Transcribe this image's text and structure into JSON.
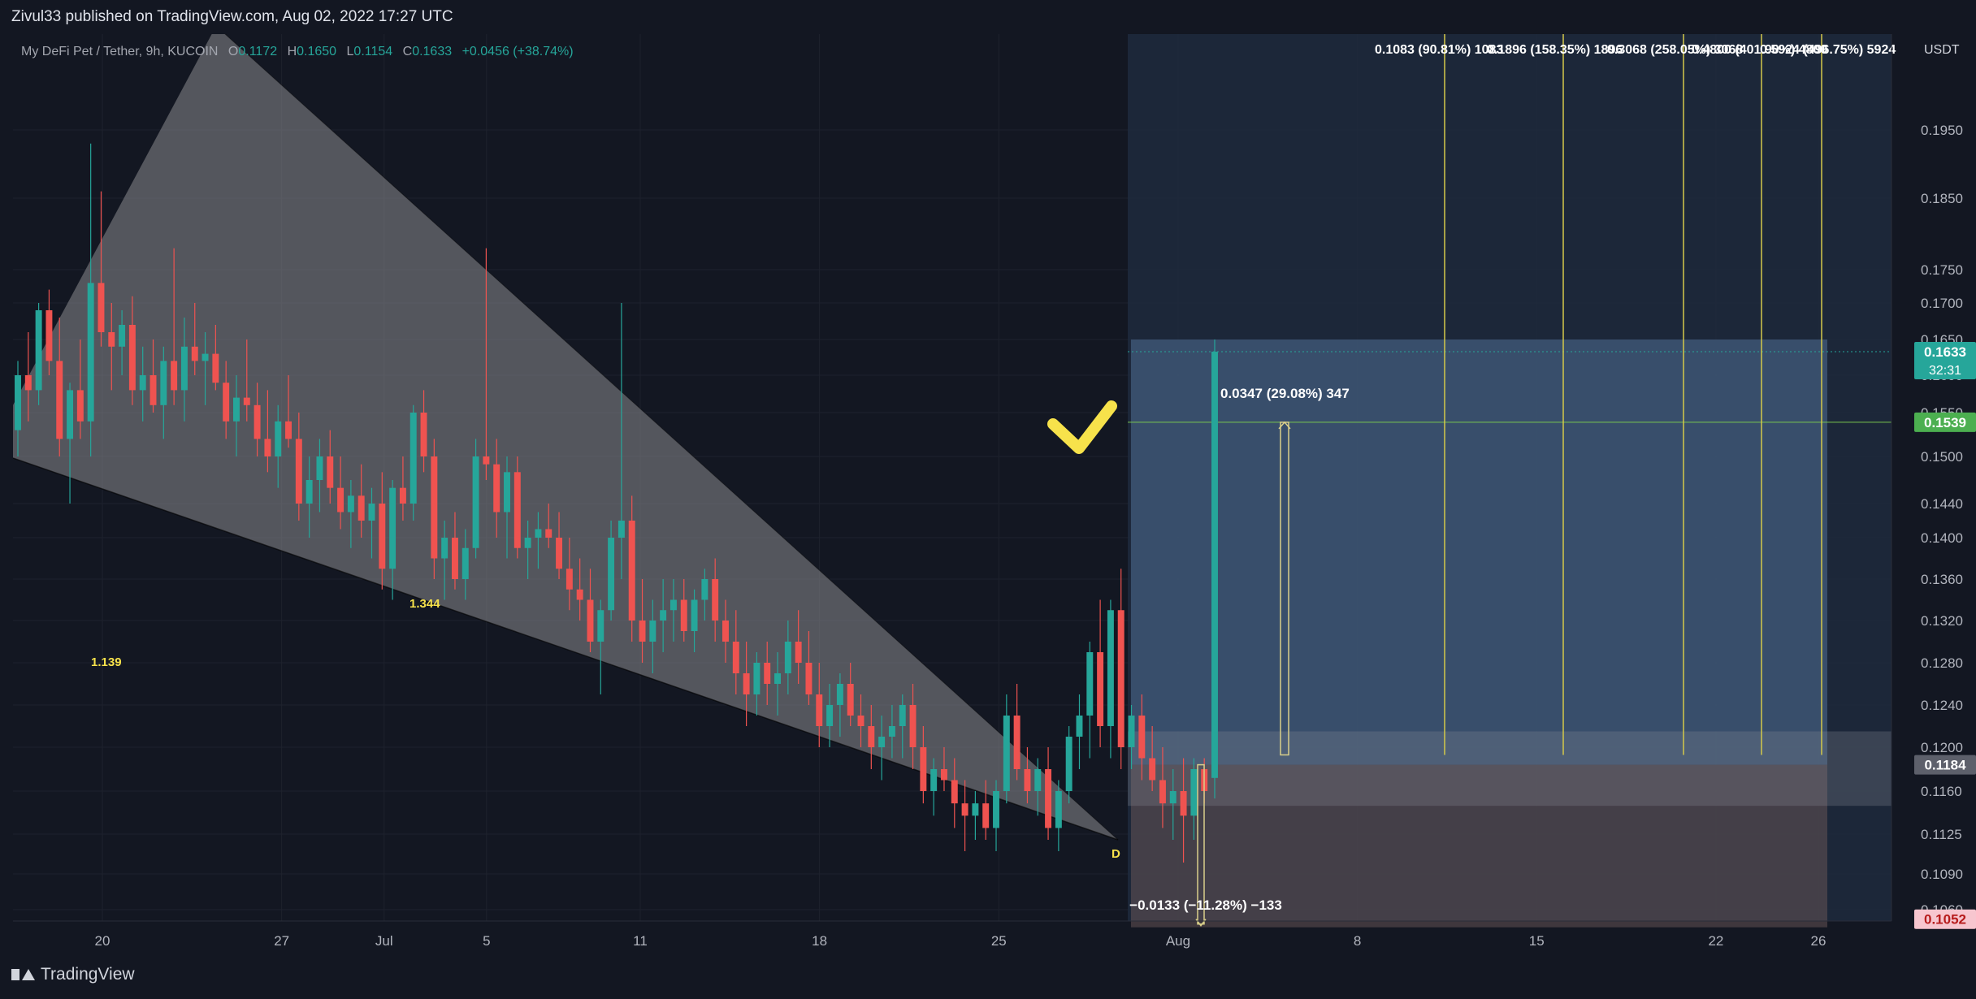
{
  "header": {
    "published": "Zivul33 published on TradingView.com, Aug 02, 2022 17:27 UTC"
  },
  "legend": {
    "symbol": "My DeFi Pet / Tether, 9h, KUCOIN",
    "o_label": "O",
    "o_value": "0.1172",
    "h_label": "H",
    "h_value": "0.1650",
    "l_label": "L",
    "l_value": "0.1154",
    "c_label": "C",
    "c_value": "0.1633",
    "change": "+0.0456 (+38.74%)"
  },
  "footer": {
    "brand": "TradingView"
  },
  "colors": {
    "background": "#131722",
    "up": "#26a69a",
    "down": "#ef5350",
    "wedge": "#8a8a8e",
    "target_zone": "#5b7fa8",
    "stop_zone": "#6b5757",
    "annotation": "#f7e24b",
    "fib_line": "#d4c94a"
  },
  "chart_data": {
    "type": "candlestick",
    "currency": "USDT",
    "timeframe": "9h",
    "ylim": [
      0.104,
      0.203
    ],
    "y_ticks": [
      "0.1950",
      "0.1850",
      "0.1750",
      "0.1700",
      "0.1650",
      "0.1600",
      "0.1550",
      "0.1500",
      "0.1440",
      "0.1400",
      "0.1360",
      "0.1320",
      "0.1280",
      "0.1240",
      "0.1200",
      "0.1160",
      "0.1125",
      "0.1090",
      "0.1060"
    ],
    "x_ticks": [
      {
        "label": "20",
        "day": 20
      },
      {
        "label": "27",
        "day": 27
      },
      {
        "label": "Jul",
        "day": 31
      },
      {
        "label": "5",
        "day": 35
      },
      {
        "label": "11",
        "day": 41
      },
      {
        "label": "18",
        "day": 48
      },
      {
        "label": "25",
        "day": 55
      },
      {
        "label": "Aug",
        "day": 62
      },
      {
        "label": "8",
        "day": 69
      },
      {
        "label": "15",
        "day": 76
      },
      {
        "label": "22",
        "day": 83
      },
      {
        "label": "26",
        "day": 87
      }
    ],
    "price_labels": [
      {
        "text": "0.1633",
        "price": 0.1633,
        "sub": "32:31",
        "kind": "last"
      },
      {
        "text": "0.1539",
        "price": 0.1539,
        "kind": "target"
      },
      {
        "text": "0.1184",
        "price": 0.1184,
        "kind": "entry"
      },
      {
        "text": "0.1052",
        "price": 0.1052,
        "kind": "stop"
      }
    ],
    "annotations": [
      {
        "text": "1.344",
        "kind": "wedge-ratio"
      },
      {
        "text": "1.139",
        "kind": "wedge-ratio"
      },
      {
        "text": "D",
        "kind": "pattern-point"
      },
      {
        "text": "0.0347 (29.08%) 347",
        "kind": "measure"
      },
      {
        "text": "−0.0133 (−11.28%) −133",
        "kind": "measure"
      },
      {
        "text": "0.1083 (90.81%) 1083",
        "kind": "fib"
      },
      {
        "text": "0.1896 (158.35%) 1896",
        "kind": "fib"
      },
      {
        "text": "0.3068 (258.05%) 3068",
        "kind": "fib"
      },
      {
        "text": "0.4800 (401.90%) 4800",
        "kind": "fib"
      },
      {
        "text": "0.5924 (496.75%) 5924",
        "kind": "fib"
      }
    ],
    "candles": [
      {
        "o": 0.153,
        "h": 0.162,
        "l": 0.15,
        "c": 0.16
      },
      {
        "o": 0.16,
        "h": 0.166,
        "l": 0.154,
        "c": 0.158
      },
      {
        "o": 0.158,
        "h": 0.17,
        "l": 0.156,
        "c": 0.169
      },
      {
        "o": 0.169,
        "h": 0.172,
        "l": 0.16,
        "c": 0.162
      },
      {
        "o": 0.162,
        "h": 0.168,
        "l": 0.15,
        "c": 0.152
      },
      {
        "o": 0.152,
        "h": 0.159,
        "l": 0.144,
        "c": 0.158
      },
      {
        "o": 0.158,
        "h": 0.165,
        "l": 0.152,
        "c": 0.154
      },
      {
        "o": 0.154,
        "h": 0.193,
        "l": 0.15,
        "c": 0.173
      },
      {
        "o": 0.173,
        "h": 0.186,
        "l": 0.164,
        "c": 0.166
      },
      {
        "o": 0.166,
        "h": 0.17,
        "l": 0.158,
        "c": 0.164
      },
      {
        "o": 0.164,
        "h": 0.169,
        "l": 0.16,
        "c": 0.167
      },
      {
        "o": 0.167,
        "h": 0.171,
        "l": 0.156,
        "c": 0.158
      },
      {
        "o": 0.158,
        "h": 0.164,
        "l": 0.154,
        "c": 0.16
      },
      {
        "o": 0.16,
        "h": 0.165,
        "l": 0.155,
        "c": 0.156
      },
      {
        "o": 0.156,
        "h": 0.164,
        "l": 0.152,
        "c": 0.162
      },
      {
        "o": 0.162,
        "h": 0.178,
        "l": 0.156,
        "c": 0.158
      },
      {
        "o": 0.158,
        "h": 0.168,
        "l": 0.154,
        "c": 0.164
      },
      {
        "o": 0.164,
        "h": 0.17,
        "l": 0.16,
        "c": 0.162
      },
      {
        "o": 0.162,
        "h": 0.166,
        "l": 0.156,
        "c": 0.163
      },
      {
        "o": 0.163,
        "h": 0.167,
        "l": 0.158,
        "c": 0.159
      },
      {
        "o": 0.159,
        "h": 0.162,
        "l": 0.152,
        "c": 0.154
      },
      {
        "o": 0.154,
        "h": 0.16,
        "l": 0.15,
        "c": 0.157
      },
      {
        "o": 0.157,
        "h": 0.165,
        "l": 0.154,
        "c": 0.156
      },
      {
        "o": 0.156,
        "h": 0.159,
        "l": 0.15,
        "c": 0.152
      },
      {
        "o": 0.152,
        "h": 0.158,
        "l": 0.148,
        "c": 0.15
      },
      {
        "o": 0.15,
        "h": 0.156,
        "l": 0.146,
        "c": 0.154
      },
      {
        "o": 0.154,
        "h": 0.16,
        "l": 0.151,
        "c": 0.152
      },
      {
        "o": 0.152,
        "h": 0.155,
        "l": 0.142,
        "c": 0.144
      },
      {
        "o": 0.144,
        "h": 0.15,
        "l": 0.14,
        "c": 0.147
      },
      {
        "o": 0.147,
        "h": 0.152,
        "l": 0.143,
        "c": 0.15
      },
      {
        "o": 0.15,
        "h": 0.153,
        "l": 0.144,
        "c": 0.146
      },
      {
        "o": 0.146,
        "h": 0.15,
        "l": 0.141,
        "c": 0.143
      },
      {
        "o": 0.143,
        "h": 0.147,
        "l": 0.139,
        "c": 0.145
      },
      {
        "o": 0.145,
        "h": 0.149,
        "l": 0.14,
        "c": 0.142
      },
      {
        "o": 0.142,
        "h": 0.146,
        "l": 0.138,
        "c": 0.144
      },
      {
        "o": 0.144,
        "h": 0.148,
        "l": 0.135,
        "c": 0.137
      },
      {
        "o": 0.137,
        "h": 0.147,
        "l": 0.134,
        "c": 0.146
      },
      {
        "o": 0.146,
        "h": 0.15,
        "l": 0.142,
        "c": 0.144
      },
      {
        "o": 0.144,
        "h": 0.156,
        "l": 0.142,
        "c": 0.155
      },
      {
        "o": 0.155,
        "h": 0.158,
        "l": 0.148,
        "c": 0.15
      },
      {
        "o": 0.15,
        "h": 0.152,
        "l": 0.136,
        "c": 0.138
      },
      {
        "o": 0.138,
        "h": 0.142,
        "l": 0.134,
        "c": 0.14
      },
      {
        "o": 0.14,
        "h": 0.143,
        "l": 0.135,
        "c": 0.136
      },
      {
        "o": 0.136,
        "h": 0.141,
        "l": 0.134,
        "c": 0.139
      },
      {
        "o": 0.139,
        "h": 0.152,
        "l": 0.138,
        "c": 0.15
      },
      {
        "o": 0.15,
        "h": 0.178,
        "l": 0.147,
        "c": 0.149
      },
      {
        "o": 0.149,
        "h": 0.152,
        "l": 0.14,
        "c": 0.143
      },
      {
        "o": 0.143,
        "h": 0.15,
        "l": 0.138,
        "c": 0.148
      },
      {
        "o": 0.148,
        "h": 0.15,
        "l": 0.138,
        "c": 0.139
      },
      {
        "o": 0.139,
        "h": 0.142,
        "l": 0.136,
        "c": 0.14
      },
      {
        "o": 0.14,
        "h": 0.143,
        "l": 0.137,
        "c": 0.141
      },
      {
        "o": 0.141,
        "h": 0.144,
        "l": 0.139,
        "c": 0.14
      },
      {
        "o": 0.14,
        "h": 0.143,
        "l": 0.136,
        "c": 0.137
      },
      {
        "o": 0.137,
        "h": 0.14,
        "l": 0.133,
        "c": 0.135
      },
      {
        "o": 0.135,
        "h": 0.138,
        "l": 0.132,
        "c": 0.134
      },
      {
        "o": 0.134,
        "h": 0.137,
        "l": 0.129,
        "c": 0.13
      },
      {
        "o": 0.13,
        "h": 0.134,
        "l": 0.125,
        "c": 0.133
      },
      {
        "o": 0.133,
        "h": 0.142,
        "l": 0.132,
        "c": 0.14
      },
      {
        "o": 0.14,
        "h": 0.17,
        "l": 0.136,
        "c": 0.142
      },
      {
        "o": 0.142,
        "h": 0.145,
        "l": 0.13,
        "c": 0.132
      },
      {
        "o": 0.132,
        "h": 0.136,
        "l": 0.128,
        "c": 0.13
      },
      {
        "o": 0.13,
        "h": 0.134,
        "l": 0.127,
        "c": 0.132
      },
      {
        "o": 0.132,
        "h": 0.136,
        "l": 0.129,
        "c": 0.133
      },
      {
        "o": 0.133,
        "h": 0.136,
        "l": 0.13,
        "c": 0.134
      },
      {
        "o": 0.134,
        "h": 0.136,
        "l": 0.13,
        "c": 0.131
      },
      {
        "o": 0.131,
        "h": 0.135,
        "l": 0.129,
        "c": 0.134
      },
      {
        "o": 0.134,
        "h": 0.137,
        "l": 0.132,
        "c": 0.136
      },
      {
        "o": 0.136,
        "h": 0.138,
        "l": 0.13,
        "c": 0.132
      },
      {
        "o": 0.132,
        "h": 0.134,
        "l": 0.128,
        "c": 0.13
      },
      {
        "o": 0.13,
        "h": 0.133,
        "l": 0.125,
        "c": 0.127
      },
      {
        "o": 0.127,
        "h": 0.13,
        "l": 0.122,
        "c": 0.125
      },
      {
        "o": 0.125,
        "h": 0.129,
        "l": 0.123,
        "c": 0.128
      },
      {
        "o": 0.128,
        "h": 0.13,
        "l": 0.124,
        "c": 0.126
      },
      {
        "o": 0.126,
        "h": 0.129,
        "l": 0.123,
        "c": 0.127
      },
      {
        "o": 0.127,
        "h": 0.132,
        "l": 0.125,
        "c": 0.13
      },
      {
        "o": 0.13,
        "h": 0.133,
        "l": 0.126,
        "c": 0.128
      },
      {
        "o": 0.128,
        "h": 0.131,
        "l": 0.124,
        "c": 0.125
      },
      {
        "o": 0.125,
        "h": 0.128,
        "l": 0.12,
        "c": 0.122
      },
      {
        "o": 0.122,
        "h": 0.126,
        "l": 0.12,
        "c": 0.124
      },
      {
        "o": 0.124,
        "h": 0.127,
        "l": 0.121,
        "c": 0.126
      },
      {
        "o": 0.126,
        "h": 0.128,
        "l": 0.122,
        "c": 0.123
      },
      {
        "o": 0.123,
        "h": 0.125,
        "l": 0.12,
        "c": 0.122
      },
      {
        "o": 0.122,
        "h": 0.124,
        "l": 0.118,
        "c": 0.12
      },
      {
        "o": 0.12,
        "h": 0.123,
        "l": 0.117,
        "c": 0.121
      },
      {
        "o": 0.121,
        "h": 0.124,
        "l": 0.119,
        "c": 0.122
      },
      {
        "o": 0.122,
        "h": 0.125,
        "l": 0.119,
        "c": 0.124
      },
      {
        "o": 0.124,
        "h": 0.126,
        "l": 0.118,
        "c": 0.12
      },
      {
        "o": 0.12,
        "h": 0.122,
        "l": 0.115,
        "c": 0.116
      },
      {
        "o": 0.116,
        "h": 0.119,
        "l": 0.114,
        "c": 0.118
      },
      {
        "o": 0.118,
        "h": 0.12,
        "l": 0.116,
        "c": 0.117
      },
      {
        "o": 0.117,
        "h": 0.119,
        "l": 0.113,
        "c": 0.115
      },
      {
        "o": 0.115,
        "h": 0.117,
        "l": 0.111,
        "c": 0.114
      },
      {
        "o": 0.114,
        "h": 0.116,
        "l": 0.112,
        "c": 0.115
      },
      {
        "o": 0.115,
        "h": 0.117,
        "l": 0.112,
        "c": 0.113
      },
      {
        "o": 0.113,
        "h": 0.117,
        "l": 0.111,
        "c": 0.116
      },
      {
        "o": 0.116,
        "h": 0.125,
        "l": 0.115,
        "c": 0.123
      },
      {
        "o": 0.123,
        "h": 0.126,
        "l": 0.117,
        "c": 0.118
      },
      {
        "o": 0.118,
        "h": 0.12,
        "l": 0.115,
        "c": 0.116
      },
      {
        "o": 0.116,
        "h": 0.119,
        "l": 0.114,
        "c": 0.118
      },
      {
        "o": 0.118,
        "h": 0.12,
        "l": 0.112,
        "c": 0.113
      },
      {
        "o": 0.113,
        "h": 0.117,
        "l": 0.111,
        "c": 0.116
      },
      {
        "o": 0.116,
        "h": 0.122,
        "l": 0.115,
        "c": 0.121
      },
      {
        "o": 0.121,
        "h": 0.125,
        "l": 0.118,
        "c": 0.123
      },
      {
        "o": 0.123,
        "h": 0.13,
        "l": 0.119,
        "c": 0.129
      },
      {
        "o": 0.129,
        "h": 0.134,
        "l": 0.12,
        "c": 0.122
      },
      {
        "o": 0.122,
        "h": 0.134,
        "l": 0.119,
        "c": 0.133
      },
      {
        "o": 0.133,
        "h": 0.137,
        "l": 0.118,
        "c": 0.12
      },
      {
        "o": 0.12,
        "h": 0.124,
        "l": 0.118,
        "c": 0.123
      },
      {
        "o": 0.123,
        "h": 0.125,
        "l": 0.117,
        "c": 0.119
      },
      {
        "o": 0.119,
        "h": 0.122,
        "l": 0.116,
        "c": 0.117
      },
      {
        "o": 0.117,
        "h": 0.12,
        "l": 0.113,
        "c": 0.115
      },
      {
        "o": 0.115,
        "h": 0.118,
        "l": 0.112,
        "c": 0.116
      },
      {
        "o": 0.116,
        "h": 0.119,
        "l": 0.11,
        "c": 0.114
      },
      {
        "o": 0.114,
        "h": 0.119,
        "l": 0.112,
        "c": 0.118
      },
      {
        "o": 0.118,
        "h": 0.119,
        "l": 0.115,
        "c": 0.116
      },
      {
        "o": 0.1172,
        "h": 0.165,
        "l": 0.1154,
        "c": 0.1633
      }
    ]
  }
}
